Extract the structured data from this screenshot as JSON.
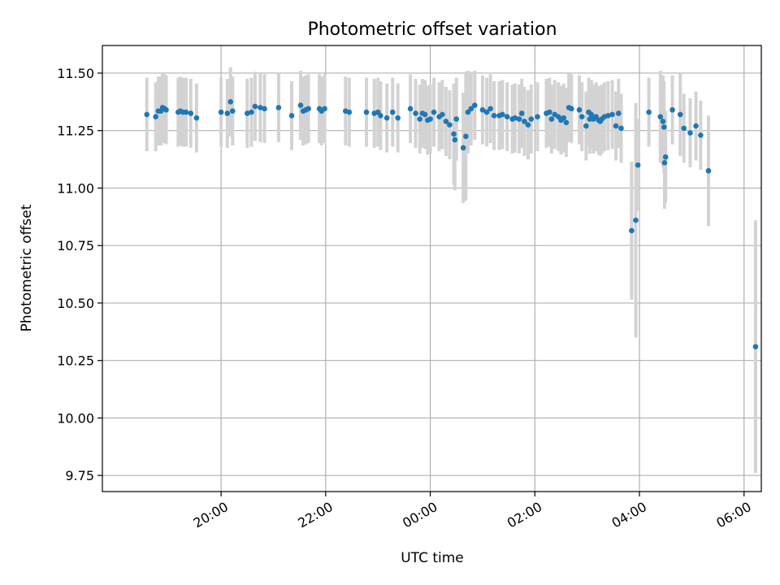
{
  "chart_data": {
    "type": "scatter",
    "title": "Photometric offset variation",
    "xlabel": "UTC time",
    "ylabel": "Photometric offset",
    "x_range_hours": [
      17.73,
      30.33
    ],
    "ylim": [
      9.68,
      11.62
    ],
    "grid": true,
    "x_ticks": [
      {
        "value": 20,
        "label": "20:00"
      },
      {
        "value": 22,
        "label": "22:00"
      },
      {
        "value": 24,
        "label": "00:00"
      },
      {
        "value": 26,
        "label": "02:00"
      },
      {
        "value": 28,
        "label": "04:00"
      },
      {
        "value": 30,
        "label": "06:00"
      }
    ],
    "y_ticks": [
      9.75,
      10.0,
      10.25,
      10.5,
      10.75,
      11.0,
      11.25,
      11.5
    ],
    "y_tick_labels": [
      "9.75",
      "10.00",
      "10.25",
      "10.50",
      "10.75",
      "11.00",
      "11.25",
      "11.50"
    ],
    "colors": {
      "points": "#1f77b4",
      "errorbars": "#d3d3d3",
      "grid": "#b0b0b0"
    },
    "series": [
      {
        "x": [
          18.58,
          18.75,
          18.8,
          18.85,
          18.88,
          18.92,
          18.95,
          19.18,
          19.22,
          19.27,
          19.33,
          19.42,
          19.53,
          20.0,
          20.12,
          20.18,
          20.22,
          20.5,
          20.58,
          20.65,
          20.75,
          20.83,
          21.1,
          21.35,
          21.52,
          21.57,
          21.62,
          21.67,
          21.88,
          21.92,
          21.98,
          22.38,
          22.45,
          22.78,
          22.93,
          23.0,
          23.05,
          23.17,
          23.28,
          23.38,
          23.62,
          23.72,
          23.8,
          23.85,
          23.9,
          23.95,
          24.0,
          24.07,
          24.17,
          24.23,
          24.3,
          24.37,
          24.45,
          24.47,
          24.5,
          24.63,
          24.68,
          24.72,
          24.78,
          24.85,
          25.0,
          25.08,
          25.15,
          25.22,
          25.32,
          25.38,
          25.47,
          25.57,
          25.62,
          25.7,
          25.75,
          25.8,
          25.87,
          25.93,
          26.05,
          26.22,
          26.28,
          26.32,
          26.38,
          26.45,
          26.5,
          26.55,
          26.6,
          26.65,
          26.7,
          26.85,
          26.9,
          26.98,
          27.03,
          27.05,
          27.08,
          27.12,
          27.17,
          27.22,
          27.25,
          27.28,
          27.33,
          27.4,
          27.48,
          27.55,
          27.6,
          27.65,
          27.85,
          27.93,
          27.97,
          28.18,
          28.4,
          28.45,
          28.47,
          28.48,
          28.5,
          28.63,
          28.78,
          28.85,
          28.97,
          29.08,
          29.17,
          29.32,
          30.22
        ],
        "y": [
          11.32,
          11.31,
          11.335,
          11.335,
          11.35,
          11.345,
          11.34,
          11.33,
          11.335,
          11.33,
          11.33,
          11.325,
          11.305,
          11.33,
          11.325,
          11.375,
          11.335,
          11.325,
          11.33,
          11.355,
          11.35,
          11.345,
          11.35,
          11.315,
          11.36,
          11.335,
          11.34,
          11.345,
          11.345,
          11.335,
          11.345,
          11.335,
          11.33,
          11.33,
          11.325,
          11.33,
          11.315,
          11.305,
          11.33,
          11.305,
          11.345,
          11.325,
          11.3,
          11.325,
          11.32,
          11.295,
          11.3,
          11.33,
          11.31,
          11.32,
          11.29,
          11.275,
          11.235,
          11.21,
          11.3,
          11.175,
          11.225,
          11.33,
          11.345,
          11.36,
          11.34,
          11.33,
          11.345,
          11.315,
          11.315,
          11.32,
          11.31,
          11.3,
          11.305,
          11.3,
          11.325,
          11.29,
          11.275,
          11.3,
          11.31,
          11.325,
          11.33,
          11.3,
          11.32,
          11.31,
          11.295,
          11.305,
          11.285,
          11.35,
          11.345,
          11.34,
          11.31,
          11.27,
          11.33,
          11.3,
          11.32,
          11.3,
          11.31,
          11.295,
          11.29,
          11.3,
          11.31,
          11.315,
          11.32,
          11.27,
          11.325,
          11.26,
          10.815,
          10.86,
          11.1,
          11.33,
          11.31,
          11.29,
          11.265,
          11.11,
          11.135,
          11.34,
          11.32,
          11.26,
          11.24,
          11.27,
          11.23,
          11.075,
          10.31
        ],
        "err": [
          0.16,
          0.15,
          0.15,
          0.15,
          0.15,
          0.15,
          0.15,
          0.15,
          0.15,
          0.15,
          0.15,
          0.15,
          0.15,
          0.15,
          0.15,
          0.15,
          0.15,
          0.15,
          0.15,
          0.15,
          0.15,
          0.15,
          0.15,
          0.15,
          0.15,
          0.15,
          0.15,
          0.15,
          0.15,
          0.15,
          0.15,
          0.15,
          0.15,
          0.15,
          0.15,
          0.15,
          0.15,
          0.15,
          0.15,
          0.15,
          0.15,
          0.15,
          0.15,
          0.15,
          0.15,
          0.15,
          0.15,
          0.15,
          0.15,
          0.15,
          0.15,
          0.15,
          0.22,
          0.22,
          0.18,
          0.24,
          0.28,
          0.18,
          0.16,
          0.15,
          0.15,
          0.15,
          0.15,
          0.15,
          0.15,
          0.15,
          0.15,
          0.15,
          0.15,
          0.15,
          0.15,
          0.15,
          0.15,
          0.15,
          0.15,
          0.15,
          0.15,
          0.15,
          0.15,
          0.15,
          0.15,
          0.15,
          0.15,
          0.15,
          0.15,
          0.15,
          0.15,
          0.15,
          0.15,
          0.15,
          0.15,
          0.15,
          0.15,
          0.15,
          0.15,
          0.15,
          0.15,
          0.15,
          0.15,
          0.15,
          0.15,
          0.15,
          0.3,
          0.51,
          0.2,
          0.15,
          0.2,
          0.2,
          0.2,
          0.2,
          0.2,
          0.15,
          0.18,
          0.15,
          0.15,
          0.15,
          0.15,
          0.24,
          0.55
        ]
      }
    ]
  }
}
